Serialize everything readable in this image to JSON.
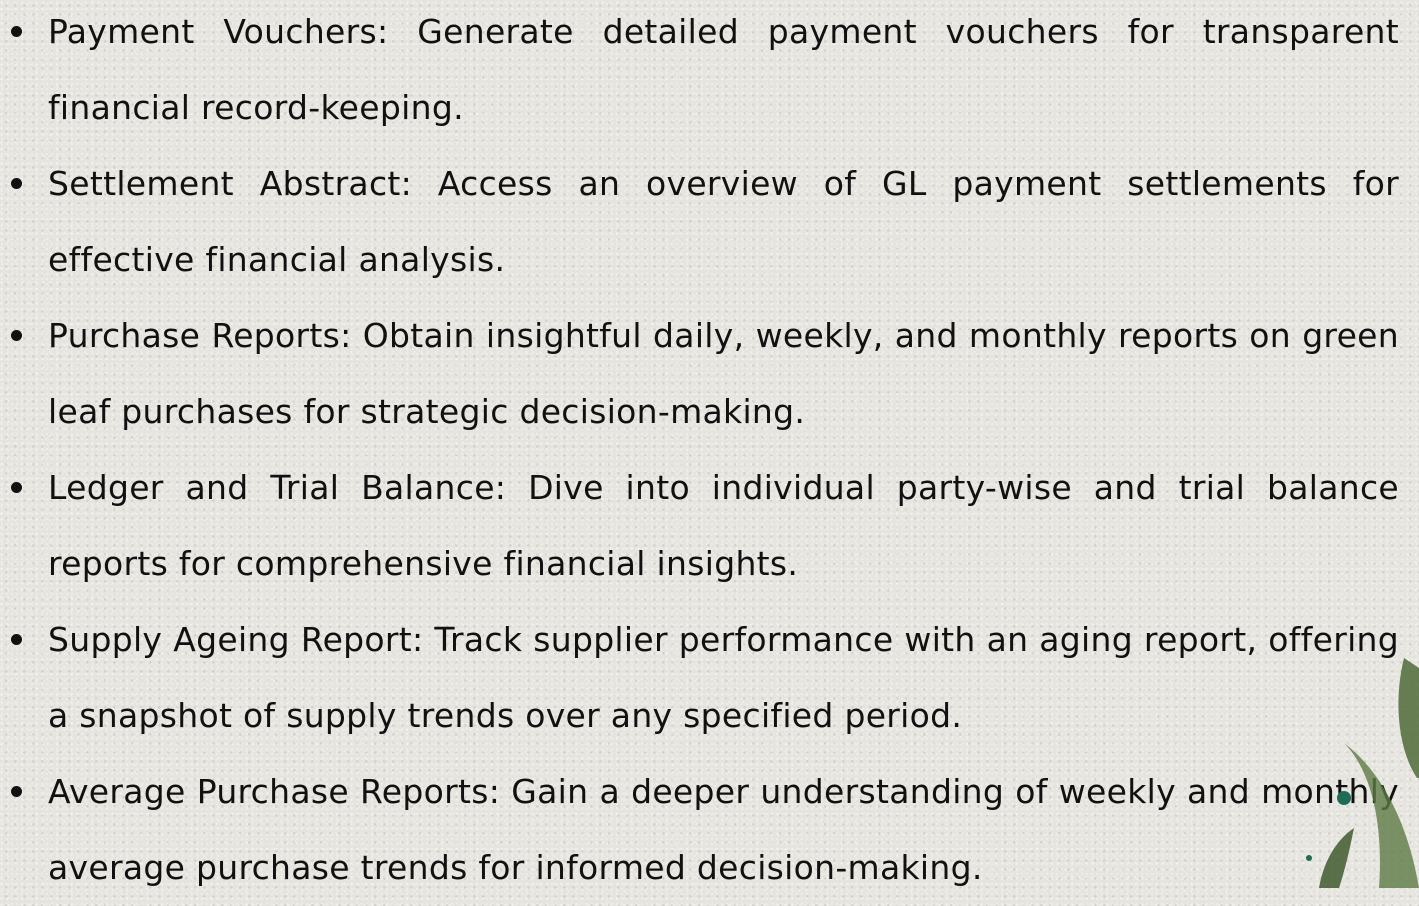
{
  "items": [
    {
      "term": "Payment Vouchers:",
      "description": "Generate detailed payment vouchers for transparent financial record-keeping."
    },
    {
      "term": "Settlement Abstract:",
      "description": "Access an overview of GL payment settlements for effective financial analysis."
    },
    {
      "term": "Purchase Reports:",
      "description": "Obtain insightful daily, weekly, and monthly reports on green leaf purchases for strategic decision-making."
    },
    {
      "term": " Ledger and Trial Balance:",
      "description": "Dive into individual party-wise and trial balance reports for comprehensive financial insights."
    },
    {
      "term": "Supply Ageing Report:",
      "description": "Track supplier performance with an aging report, offering a snapshot of supply trends over any specified period."
    },
    {
      "term": "Average Purchase Reports:",
      "description": "Gain a deeper understanding of weekly and monthly average purchase trends for informed decision-making."
    }
  ]
}
